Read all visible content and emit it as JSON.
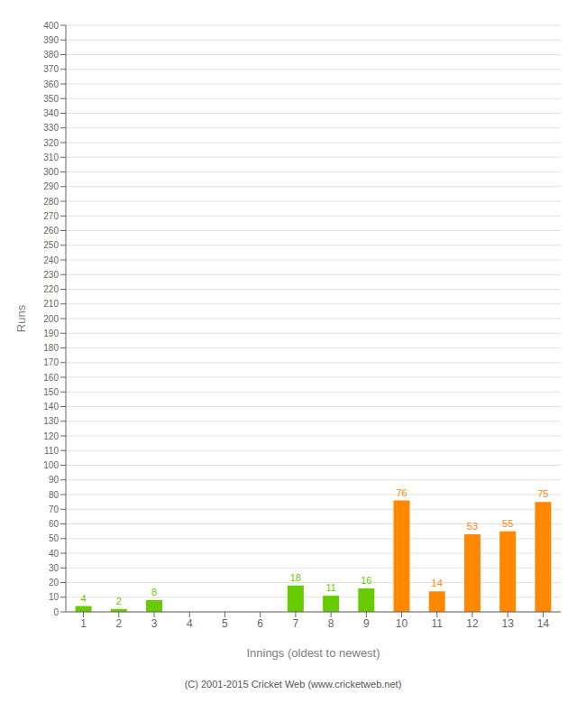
{
  "chart_data": {
    "type": "bar",
    "categories": [
      "1",
      "2",
      "3",
      "4",
      "5",
      "6",
      "7",
      "8",
      "9",
      "10",
      "11",
      "12",
      "13",
      "14"
    ],
    "values": [
      4,
      2,
      8,
      0,
      0,
      0,
      18,
      11,
      16,
      76,
      14,
      53,
      55,
      75
    ],
    "colors": [
      "#66cc00",
      "#66cc00",
      "#66cc00",
      "#66cc00",
      "#66cc00",
      "#66cc00",
      "#66cc00",
      "#66cc00",
      "#66cc00",
      "#ff8800",
      "#ff8800",
      "#ff8800",
      "#ff8800",
      "#ff8800"
    ],
    "x_label": "Innings (oldest to newest)",
    "y_label": "Runs",
    "ylim": [
      0,
      400
    ],
    "yticks": [
      0,
      10,
      20,
      30,
      40,
      50,
      60,
      70,
      80,
      90,
      100,
      110,
      120,
      130,
      140,
      150,
      160,
      170,
      180,
      190,
      200,
      210,
      220,
      230,
      240,
      250,
      260,
      270,
      280,
      290,
      300,
      310,
      320,
      330,
      340,
      350,
      360,
      370,
      380,
      390,
      400
    ],
    "grid": true,
    "data_labels": true,
    "annotations": [
      "(C) 2001-2015 Cricket Web (www.cricketweb.net)"
    ]
  }
}
